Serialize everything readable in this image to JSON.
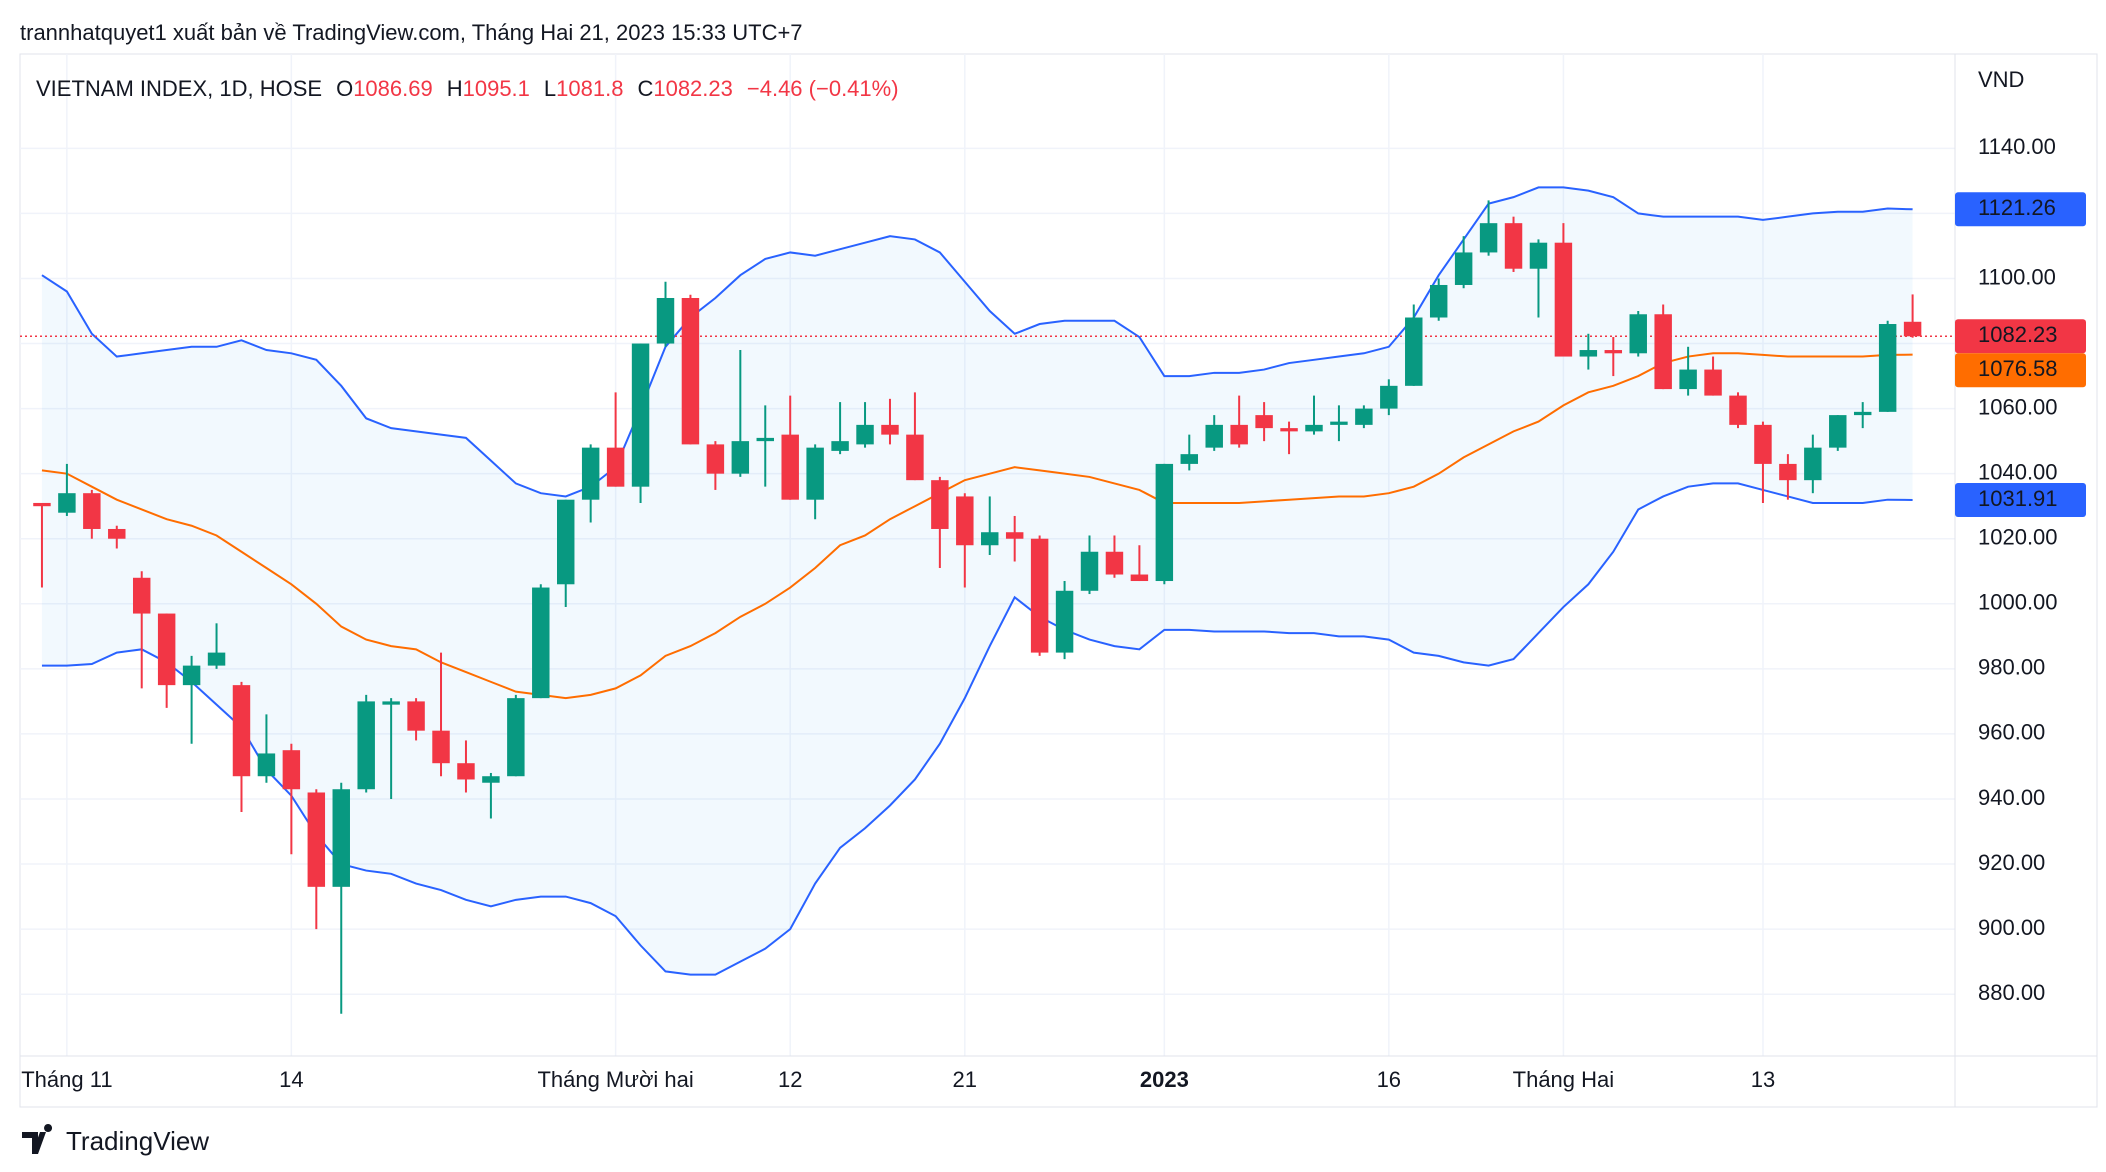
{
  "chart_data": {
    "type": "candlestick",
    "header": "trannhatquyet1 xuất bản về TradingView.com, Tháng Hai 21, 2023 15:33 UTC+7",
    "title": "VIETNAM INDEX, 1D, HOSE",
    "ohlc_letters": [
      "O",
      "H",
      "L",
      "C"
    ],
    "change": "−4.46 (−0.41%)",
    "unit": "VND",
    "watermark": "TradingView",
    "up_color": "#089981",
    "down_color": "#f23645",
    "band_fill": "rgba(33,150,243,0.06)",
    "grid": true,
    "xlim": [
      -0.88,
      76.7
    ],
    "ylim": [
      861,
      1169
    ],
    "xticks": [
      {
        "value": 1,
        "label": "Tháng 11"
      },
      {
        "value": 10,
        "label": "14"
      },
      {
        "value": 23,
        "label": "Tháng Mười hai"
      },
      {
        "value": 30,
        "label": "12"
      },
      {
        "value": 37,
        "label": "21"
      },
      {
        "value": 45,
        "label": "2023",
        "bold": true
      },
      {
        "value": 54,
        "label": "16"
      },
      {
        "value": 61,
        "label": "Tháng Hai"
      },
      {
        "value": 69,
        "label": "13"
      }
    ],
    "yticks": [
      {
        "value": 880,
        "label": "880.00"
      },
      {
        "value": 900,
        "label": "900.00"
      },
      {
        "value": 920,
        "label": "920.00"
      },
      {
        "value": 940,
        "label": "940.00"
      },
      {
        "value": 960,
        "label": "960.00"
      },
      {
        "value": 980,
        "label": "980.00"
      },
      {
        "value": 1000,
        "label": "1000.00"
      },
      {
        "value": 1020,
        "label": "1020.00"
      },
      {
        "value": 1040,
        "label": "1040.00"
      },
      {
        "value": 1060,
        "label": "1060.00"
      },
      {
        "value": 1080,
        "label": "1080.00"
      },
      {
        "value": 1100,
        "label": "1100.00"
      },
      {
        "value": 1120,
        "label": "1120.00"
      },
      {
        "value": 1140,
        "label": "1140.00"
      }
    ],
    "open": [
      1031,
      1028,
      1034,
      1023,
      1008,
      997,
      975,
      981,
      975,
      947,
      955,
      942,
      913,
      943,
      969,
      970,
      961,
      951,
      945,
      947,
      971,
      1006,
      1032,
      1048,
      1036,
      1080,
      1094,
      1049,
      1040,
      1050,
      1052,
      1032,
      1047,
      1049,
      1055,
      1052,
      1038,
      1033,
      1018,
      1022,
      1020,
      985,
      1004,
      1016,
      1009,
      1007,
      1043,
      1048,
      1055,
      1058,
      1054,
      1053,
      1055,
      1055,
      1060,
      1067,
      1088,
      1098,
      1108,
      1117,
      1103,
      1111,
      1076,
      1078,
      1077,
      1089,
      1066,
      1072,
      1064,
      1055,
      1043,
      1038,
      1048,
      1058,
      1059,
      1086.69
    ],
    "high": [
      1031,
      1043,
      1035,
      1024,
      1010,
      997,
      984,
      994,
      976,
      966,
      957,
      943,
      945,
      972,
      971,
      971,
      985,
      958,
      948,
      972,
      1006,
      1032,
      1049,
      1065,
      1080,
      1099,
      1095,
      1050,
      1078,
      1061,
      1064,
      1049,
      1062,
      1062,
      1063,
      1065,
      1039,
      1034,
      1033,
      1027,
      1021,
      1007,
      1021,
      1021,
      1018,
      1043,
      1052,
      1058,
      1064,
      1062,
      1056,
      1064,
      1061,
      1061,
      1069,
      1092,
      1100,
      1113,
      1124,
      1119,
      1112,
      1117,
      1083,
      1082,
      1090,
      1092,
      1079,
      1076,
      1065,
      1056,
      1046,
      1052,
      1058,
      1062,
      1087,
      1095.1
    ],
    "low": [
      1005,
      1027,
      1020,
      1017,
      974,
      968,
      957,
      980,
      936,
      945,
      923,
      900,
      874,
      942,
      940,
      958,
      947,
      942,
      934,
      947,
      971,
      999,
      1025,
      1036,
      1031,
      1079,
      1049,
      1035,
      1039,
      1036,
      1032,
      1026,
      1046,
      1048,
      1049,
      1038,
      1011,
      1005,
      1015,
      1013,
      984,
      983,
      1003,
      1008,
      1007,
      1006,
      1041,
      1047,
      1048,
      1050,
      1046,
      1052,
      1050,
      1054,
      1058,
      1067,
      1087,
      1097,
      1107,
      1102,
      1088,
      1076,
      1072,
      1070,
      1076,
      1066,
      1064,
      1064,
      1054,
      1031,
      1032,
      1034,
      1047,
      1054,
      1059,
      1081.8
    ],
    "close": [
      1030,
      1034,
      1023,
      1020,
      997,
      975,
      981,
      985,
      947,
      954,
      943,
      913,
      943,
      970,
      970,
      961,
      951,
      946,
      947,
      971,
      1005,
      1032,
      1048,
      1036,
      1080,
      1094,
      1049,
      1040,
      1050,
      1051,
      1032,
      1048,
      1050,
      1055,
      1052,
      1038,
      1023,
      1018,
      1022,
      1020,
      985,
      1004,
      1016,
      1009,
      1007,
      1043,
      1046,
      1055,
      1049,
      1054,
      1053,
      1055,
      1056,
      1060,
      1067,
      1088,
      1098,
      1108,
      1117,
      1103,
      1111,
      1076,
      1078,
      1077,
      1089,
      1066,
      1072,
      1064,
      1055,
      1043,
      1038,
      1048,
      1058,
      1059,
      1086,
      1082.23
    ],
    "bands": [
      {
        "color": "#2962ff",
        "values": [
          1101,
          1096,
          1083,
          1076,
          1077,
          1078,
          1079,
          1079,
          1081,
          1078,
          1077,
          1075,
          1067,
          1057,
          1054,
          1053,
          1052,
          1051,
          1044,
          1037,
          1034,
          1033,
          1036,
          1042,
          1060,
          1079,
          1088,
          1094,
          1101,
          1106,
          1108,
          1107,
          1109,
          1111,
          1113,
          1112,
          1108,
          1099,
          1090,
          1083,
          1086,
          1087,
          1087,
          1087,
          1082,
          1070,
          1070,
          1071,
          1071,
          1072,
          1074,
          1075,
          1076,
          1077,
          1079,
          1088,
          1101,
          1112,
          1123,
          1125,
          1128,
          1128,
          1127,
          1125,
          1120,
          1119,
          1119,
          1119,
          1119,
          1118,
          1119,
          1120,
          1120.5,
          1120.5,
          1121.5,
          1121.26
        ]
      },
      {
        "color": "#ff6d00",
        "values": [
          1041,
          1040,
          1036,
          1032,
          1029,
          1026,
          1024,
          1021,
          1016,
          1011,
          1006,
          1000,
          993,
          989,
          987,
          986,
          982,
          979,
          976,
          973,
          972,
          971,
          972,
          974,
          978,
          984,
          987,
          991,
          996,
          1000,
          1005,
          1011,
          1018,
          1021,
          1026,
          1030,
          1034,
          1038,
          1040,
          1042,
          1041,
          1040,
          1039,
          1037,
          1035,
          1031,
          1031,
          1031,
          1031,
          1031.5,
          1032,
          1032.5,
          1033,
          1033,
          1034,
          1036,
          1040,
          1045,
          1049,
          1053,
          1056,
          1061,
          1065,
          1067,
          1070,
          1074,
          1076,
          1077,
          1077,
          1076.5,
          1076,
          1076,
          1076,
          1076,
          1076.5,
          1076.58
        ]
      },
      {
        "color": "#2962ff",
        "values": [
          981,
          981,
          981.5,
          985,
          986,
          982,
          976,
          969,
          962,
          949,
          941,
          929,
          920,
          918,
          917,
          914,
          912,
          909,
          907,
          909,
          910,
          910,
          908,
          904,
          895,
          887,
          886,
          886,
          890,
          894,
          900,
          914,
          925,
          931,
          938,
          946,
          957,
          971,
          987,
          1002,
          996,
          992,
          989,
          987,
          986,
          992,
          992,
          991.5,
          991.5,
          991.5,
          991,
          991,
          990,
          990,
          989,
          985,
          984,
          982,
          981,
          983,
          991,
          999,
          1006,
          1016,
          1029,
          1033,
          1036,
          1037,
          1037,
          1035,
          1033,
          1031,
          1031,
          1031,
          1032,
          1031.91
        ]
      }
    ]
  }
}
